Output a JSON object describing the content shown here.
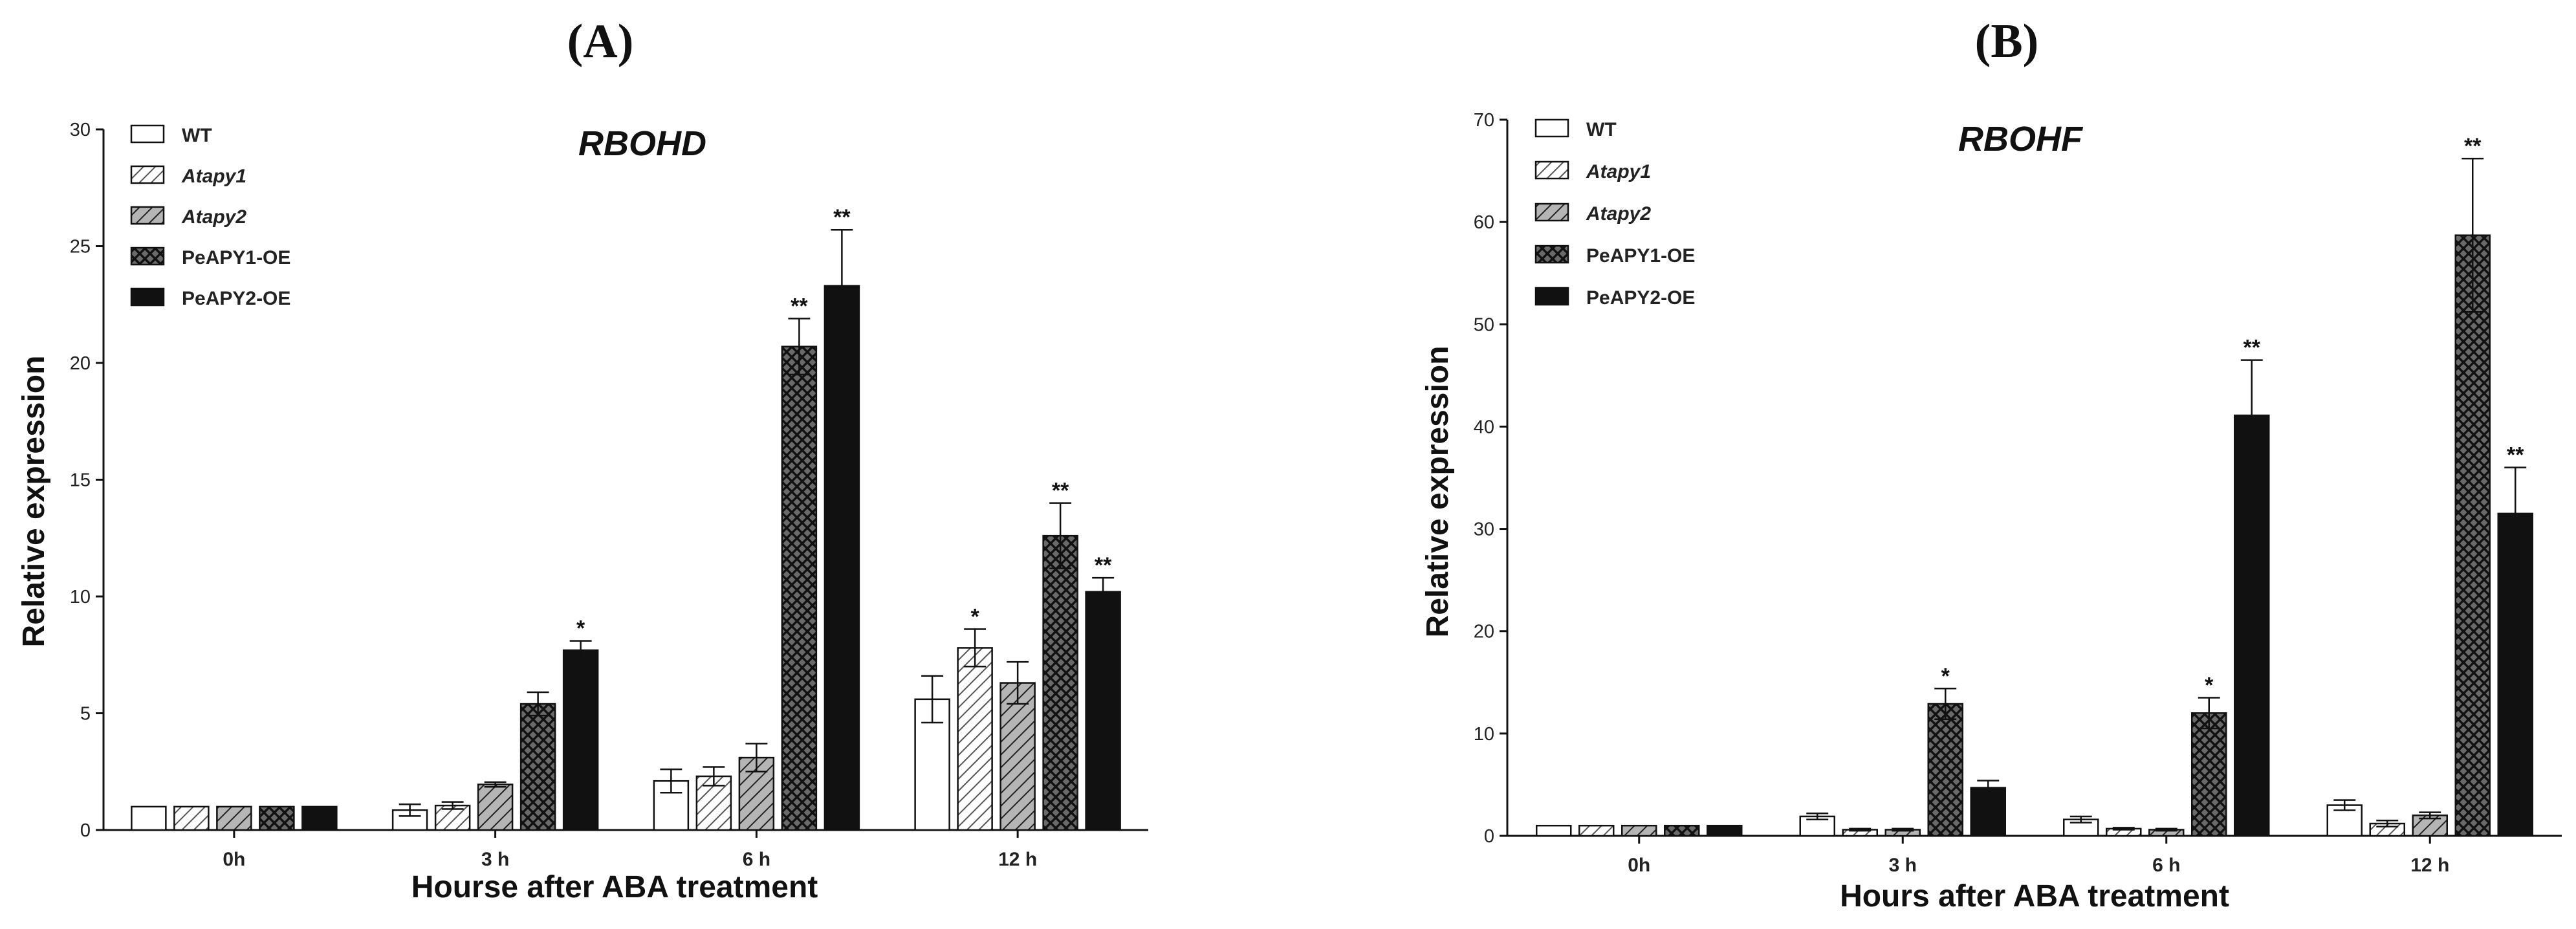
{
  "series_styles": [
    {
      "name": "WT",
      "italic": false,
      "fill": "#ffffff"
    },
    {
      "name": "Atapy1",
      "italic": true,
      "fill": "url(#hatchLight)"
    },
    {
      "name": "Atapy2",
      "italic": true,
      "fill": "url(#hatchGray)"
    },
    {
      "name": "PeAPY1-OE",
      "italic": false,
      "fill": "url(#crossHatch)"
    },
    {
      "name": "PeAPY2-OE",
      "italic": false,
      "fill": "#111111"
    }
  ],
  "chart_data": [
    {
      "panel": "(A)",
      "type": "bar",
      "title": "RBOHD",
      "xlabel": "Hourse after ABA treatment",
      "ylabel": "Relative expression",
      "ylim": [
        0,
        30
      ],
      "yticks": [
        0,
        5,
        10,
        15,
        20,
        25,
        30
      ],
      "categories": [
        "0h",
        "3 h",
        "6 h",
        "12 h"
      ],
      "legend_position": "top-left",
      "series": [
        {
          "name": "WT",
          "values": [
            1.0,
            0.85,
            2.1,
            5.6
          ],
          "errors": [
            0,
            0.25,
            0.5,
            1.0
          ],
          "sig": [
            "",
            "",
            "",
            ""
          ]
        },
        {
          "name": "Atapy1",
          "values": [
            1.0,
            1.05,
            2.3,
            7.8
          ],
          "errors": [
            0,
            0.15,
            0.4,
            0.8
          ],
          "sig": [
            "",
            "",
            "",
            "*"
          ]
        },
        {
          "name": "Atapy2",
          "values": [
            1.0,
            1.95,
            3.1,
            6.3
          ],
          "errors": [
            0,
            0.1,
            0.6,
            0.9
          ],
          "sig": [
            "",
            "",
            "",
            ""
          ]
        },
        {
          "name": "PeAPY1-OE",
          "values": [
            1.0,
            5.4,
            20.7,
            12.6
          ],
          "errors": [
            0,
            0.5,
            1.2,
            1.4
          ],
          "sig": [
            "",
            "",
            "**",
            "**"
          ]
        },
        {
          "name": "PeAPY2-OE",
          "values": [
            1.0,
            7.7,
            23.3,
            10.2
          ],
          "errors": [
            0,
            0.4,
            2.4,
            0.6
          ],
          "sig": [
            "",
            "*",
            "**",
            "**"
          ]
        }
      ]
    },
    {
      "panel": "(B)",
      "type": "bar",
      "title": "RBOHF",
      "xlabel": "Hours after ABA treatment",
      "ylabel": "Relative expression",
      "ylim": [
        0,
        70
      ],
      "yticks": [
        0,
        10,
        20,
        30,
        40,
        50,
        60,
        70
      ],
      "categories": [
        "0h",
        "3 h",
        "6 h",
        "12 h"
      ],
      "legend_position": "top-left",
      "series": [
        {
          "name": "WT",
          "values": [
            1.0,
            1.9,
            1.6,
            3.0
          ],
          "errors": [
            0,
            0.3,
            0.3,
            0.5
          ],
          "sig": [
            "",
            "",
            "",
            ""
          ]
        },
        {
          "name": "Atapy1",
          "values": [
            1.0,
            0.6,
            0.7,
            1.2
          ],
          "errors": [
            0,
            0.1,
            0.1,
            0.3
          ],
          "sig": [
            "",
            "",
            "",
            ""
          ]
        },
        {
          "name": "Atapy2",
          "values": [
            1.0,
            0.6,
            0.6,
            2.0
          ],
          "errors": [
            0,
            0.1,
            0.1,
            0.3
          ],
          "sig": [
            "",
            "",
            "",
            ""
          ]
        },
        {
          "name": "PeAPY1-OE",
          "values": [
            1.0,
            12.9,
            12.0,
            58.7
          ],
          "errors": [
            0,
            1.5,
            1.5,
            7.5
          ],
          "sig": [
            "",
            "*",
            "*",
            "**"
          ]
        },
        {
          "name": "PeAPY2-OE",
          "values": [
            1.0,
            4.7,
            41.1,
            31.5
          ],
          "errors": [
            0,
            0.7,
            5.4,
            4.5
          ],
          "sig": [
            "",
            "",
            "**",
            "**"
          ]
        }
      ]
    }
  ]
}
